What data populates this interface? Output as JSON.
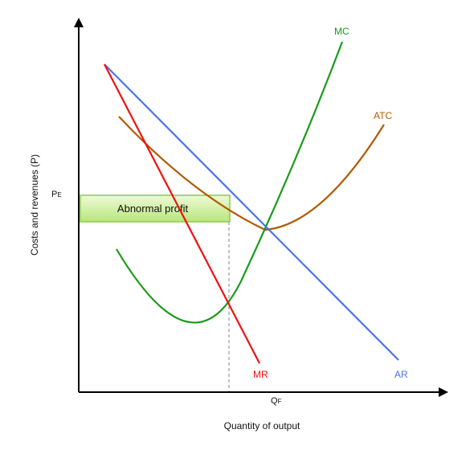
{
  "axes": {
    "y_label": "Costs and revenues (P)",
    "x_label": "Quantity of output",
    "pe_main": "P",
    "pe_sub": "E",
    "qf_main": "Q",
    "qf_sub": "F"
  },
  "curves": {
    "mc": {
      "label": "MC",
      "color": "#1a9a1a"
    },
    "atc": {
      "label": "ATC",
      "color": "#b35a00"
    },
    "ar": {
      "label": "AR",
      "color": "#4a72f0"
    },
    "mr": {
      "label": "MR",
      "color": "#ee1111"
    }
  },
  "profit_box": {
    "label": "Abnormal profit",
    "fill_top": "#eefad8",
    "fill_bottom": "#b8e67a",
    "border": "#8cc850"
  },
  "guide_color": "#999999"
}
